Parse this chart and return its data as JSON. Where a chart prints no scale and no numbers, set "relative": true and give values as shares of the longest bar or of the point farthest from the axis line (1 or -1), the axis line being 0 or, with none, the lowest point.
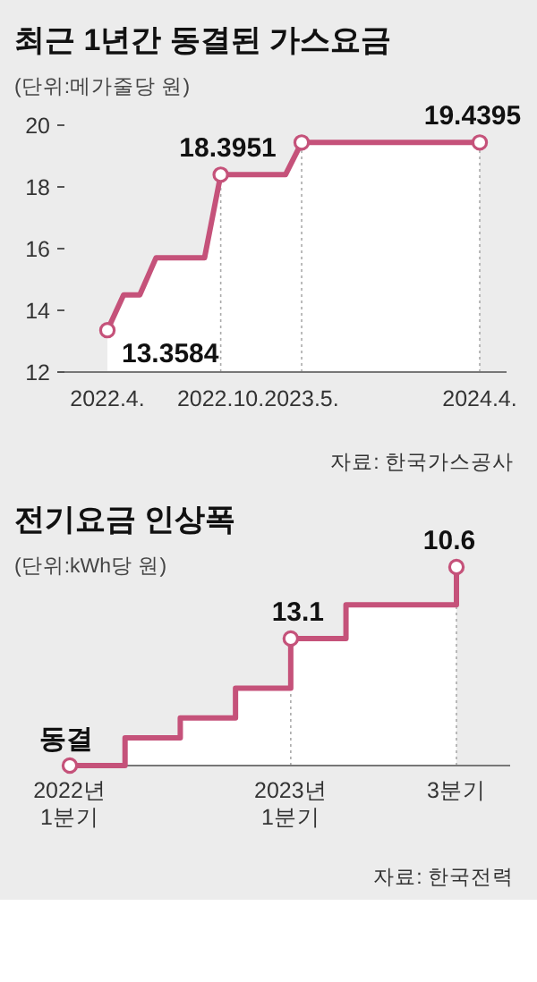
{
  "chart_data": [
    {
      "type": "area",
      "title": "최근 1년간 동결된 가스요금",
      "subtitle": "(단위:메가줄당 원)",
      "categories": [
        "2022.4.",
        null,
        null,
        null,
        null,
        null,
        null,
        "2022.10.",
        null,
        null,
        null,
        null,
        "2023.5.",
        null,
        null,
        null,
        null,
        null,
        null,
        null,
        null,
        null,
        null,
        "2024.4."
      ],
      "series": [
        {
          "color": "#c5527a",
          "values": [
            13.3584,
            14.5,
            14.5,
            15.7,
            15.7,
            15.7,
            15.7,
            18.3951,
            18.3951,
            18.3951,
            18.3951,
            18.3951,
            19.4395,
            19.4395,
            19.4395,
            19.4395,
            19.4395,
            19.4395,
            19.4395,
            19.4395,
            19.4395,
            19.4395,
            19.4395,
            19.4395
          ]
        },
        {
          "type": "scatter",
          "marker": "circle",
          "color": "#c5527a",
          "x": [
            "2022.4.",
            "2022.10.",
            "2023.5.",
            "2024.4."
          ],
          "values": [
            13.3584,
            18.3951,
            19.4395,
            19.4395
          ],
          "value_labels": [
            "13.3584",
            "18.3951",
            null,
            "19.4395"
          ]
        }
      ],
      "ylim": [
        12,
        20
      ],
      "yticks": [
        12,
        14,
        16,
        18,
        20
      ],
      "grid": false,
      "ref_lines": [
        {
          "axis": "x",
          "value": "2022.10.",
          "line_style": "dotted",
          "color": "#aaaaaa"
        },
        {
          "axis": "x",
          "value": "2023.5.",
          "line_style": "dotted",
          "color": "#aaaaaa"
        },
        {
          "axis": "x",
          "value": "2024.4.",
          "line_style": "dotted",
          "color": "#aaaaaa"
        }
      ],
      "annotations": [
        "자료: 한국가스공사"
      ]
    },
    {
      "type": "step",
      "title": "전기요금 인상폭",
      "subtitle": "(단위:kWh당 원)",
      "relative": true,
      "categories": [
        "2022년\n1분기",
        null,
        null,
        null,
        "2023년\n1분기",
        null,
        null,
        "3분기"
      ],
      "series": [
        {
          "color": "#c5527a",
          "values": [
            0,
            0.14,
            0.24,
            0.39,
            0.64,
            0.81,
            0.81,
            1
          ]
        },
        {
          "type": "scatter",
          "marker": "circle",
          "color": "#c5527a",
          "x": [
            "2022년\n1분기",
            "2023년\n1분기",
            "3분기"
          ],
          "values": [
            0,
            0.64,
            1
          ]
        }
      ],
      "grid": false,
      "ref_lines": [
        {
          "axis": "x",
          "value": "2023년\n1분기",
          "line_style": "dotted",
          "color": "#aaaaaa"
        },
        {
          "axis": "x",
          "value": "3분기",
          "line_style": "dotted",
          "color": "#aaaaaa"
        }
      ],
      "annotations": [
        {
          "text": "동결",
          "x": "2022년\n1분기",
          "y": 0
        },
        {
          "text": "13.1",
          "x": "2023년\n1분기",
          "y": 0.64
        },
        {
          "text": "10.6",
          "x": "3분기",
          "y": 1
        },
        "자료: 한국전력"
      ]
    }
  ]
}
